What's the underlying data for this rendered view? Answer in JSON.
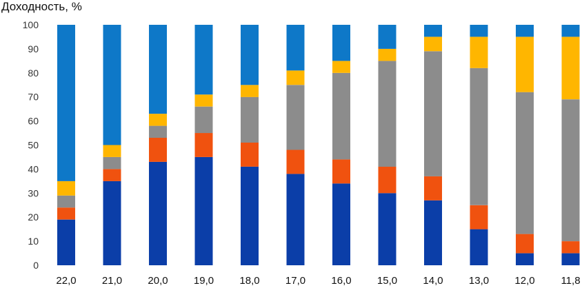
{
  "chart_data": {
    "type": "bar",
    "stacked": true,
    "title": "",
    "ylabel": "Доходность, %",
    "xlabel": "",
    "ylim": [
      0,
      100
    ],
    "yticks": [
      "0",
      "10",
      "20",
      "30",
      "40",
      "50",
      "60",
      "70",
      "80",
      "90",
      "100"
    ],
    "grid": false,
    "legend": "none",
    "categories": [
      "22,0",
      "21,0",
      "20,0",
      "19,0",
      "18,0",
      "17,0",
      "16,0",
      "15,0",
      "14,0",
      "13,0",
      "12,0",
      "11,8"
    ],
    "series": [
      {
        "color": "#0b3ea8",
        "values": [
          19,
          35,
          43,
          45,
          41,
          38,
          34,
          30,
          27,
          15,
          5,
          5
        ]
      },
      {
        "color": "#f0520f",
        "values": [
          5,
          5,
          10,
          10,
          10,
          10,
          10,
          11,
          10,
          10,
          8,
          5
        ]
      },
      {
        "color": "#8c8c8c",
        "values": [
          5,
          5,
          5,
          11,
          19,
          27,
          36,
          44,
          52,
          57,
          59,
          59
        ]
      },
      {
        "color": "#ffb600",
        "values": [
          6,
          5,
          5,
          5,
          5,
          6,
          5,
          5,
          6,
          13,
          23,
          26
        ]
      },
      {
        "color": "#0e78c8",
        "values": [
          65,
          50,
          37,
          29,
          25,
          19,
          15,
          10,
          5,
          5,
          5,
          5
        ]
      }
    ]
  }
}
